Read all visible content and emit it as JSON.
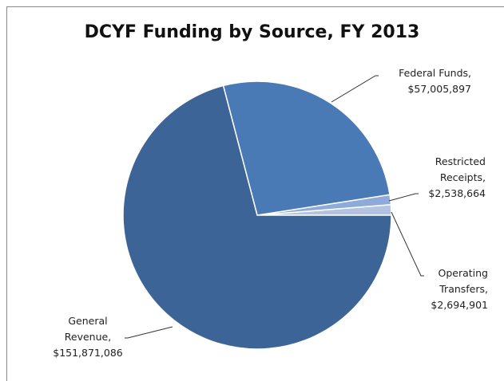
{
  "chart_data": {
    "type": "pie",
    "title": "DCYF Funding by Source, FY 2013",
    "categories": [
      "Operating Transfers,",
      "Restricted Receipts,",
      "Federal Funds,",
      "General Revenue,"
    ],
    "values": [
      2694901,
      2538664,
      57005897,
      151871086
    ],
    "value_labels": [
      "$2,694,901",
      "$2,538,664",
      "$57,005,897",
      "$151,871,086"
    ],
    "colors": [
      "#b4c4e0",
      "#8eaad8",
      "#4a7ab5",
      "#3d6496"
    ]
  }
}
